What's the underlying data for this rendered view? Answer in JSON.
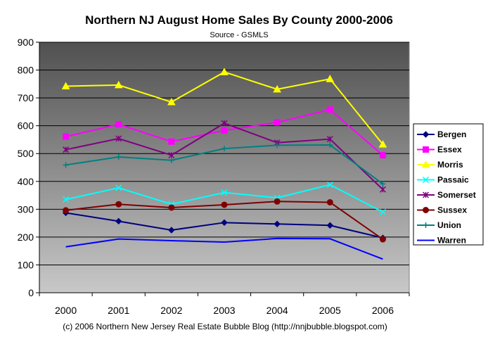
{
  "chart_data": {
    "type": "line",
    "title": "Northern  NJ August Home Sales By County 2000-2006",
    "subtitle": "Source - GSMLS",
    "footer": "(c) 2006 Northern New Jersey Real Estate Bubble Blog (http://nnjbubble.blogspot.com)",
    "xlabel": "",
    "ylabel": "",
    "ylim": [
      0,
      900
    ],
    "yticks": [
      0,
      100,
      200,
      300,
      400,
      500,
      600,
      700,
      800,
      900
    ],
    "grid": true,
    "legend_position": "right",
    "categories": [
      "2000",
      "2001",
      "2002",
      "2003",
      "2004",
      "2005",
      "2006"
    ],
    "series": [
      {
        "name": "Bergen",
        "color": "#000080",
        "marker": "diamond",
        "values": [
          287,
          257,
          225,
          252,
          247,
          242,
          197
        ]
      },
      {
        "name": "Essex",
        "color": "#ff00ff",
        "marker": "square",
        "values": [
          561,
          605,
          543,
          583,
          612,
          658,
          494
        ]
      },
      {
        "name": "Morris",
        "color": "#ffff00",
        "marker": "triangle",
        "values": [
          742,
          746,
          685,
          793,
          731,
          768,
          533
        ]
      },
      {
        "name": "Passaic",
        "color": "#00ffff",
        "marker": "x",
        "values": [
          335,
          377,
          318,
          360,
          341,
          388,
          290
        ]
      },
      {
        "name": "Somerset",
        "color": "#800080",
        "marker": "star",
        "values": [
          514,
          554,
          494,
          609,
          539,
          552,
          371
        ]
      },
      {
        "name": "Sussex",
        "color": "#800000",
        "marker": "circle",
        "values": [
          296,
          318,
          306,
          316,
          328,
          325,
          192
        ]
      },
      {
        "name": "Union",
        "color": "#008080",
        "marker": "plus",
        "values": [
          459,
          488,
          476,
          518,
          530,
          531,
          391
        ]
      },
      {
        "name": "Warren",
        "color": "#0000ff",
        "marker": "none",
        "values": [
          165,
          193,
          187,
          182,
          195,
          194,
          121
        ]
      }
    ]
  }
}
